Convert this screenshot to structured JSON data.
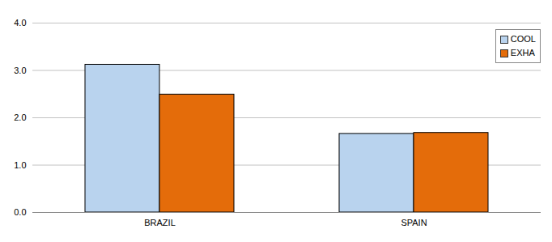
{
  "chart_data": {
    "type": "bar",
    "categories": [
      "BRAZIL",
      "SPAIN"
    ],
    "series": [
      {
        "name": "COOL",
        "color": "#b9d3ee",
        "values": [
          3.12,
          1.66
        ]
      },
      {
        "name": "EXHA",
        "color": "#e46c0a",
        "values": [
          2.49,
          1.68
        ]
      }
    ],
    "ylim": [
      0,
      4
    ],
    "yticks": [
      0,
      1,
      2,
      3,
      4
    ],
    "grid": true,
    "legend": "upper right"
  }
}
